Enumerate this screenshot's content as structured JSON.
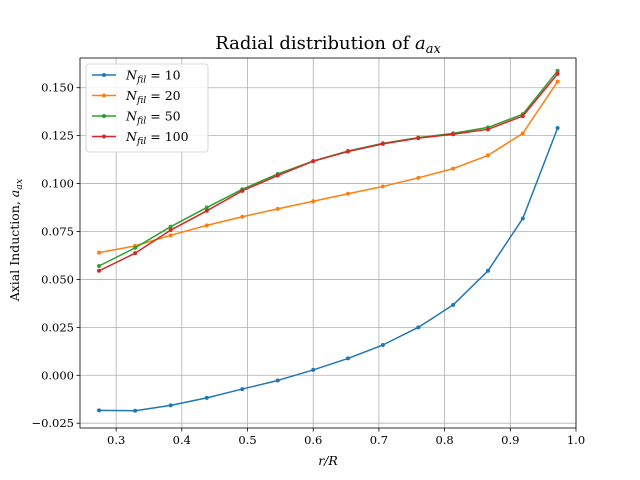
{
  "chart_data": {
    "type": "line",
    "title": "Radial distribution of a_ax",
    "title_parts": {
      "prefix": "Radial distribution of ",
      "var": "a",
      "sub": "ax"
    },
    "xlabel": "r/R",
    "ylabel": "Axial Induction, a_ax",
    "ylabel_parts": {
      "prefix": "Axial Induction, ",
      "var": "a",
      "sub": "ax"
    },
    "xlim": [
      0.245,
      1.0
    ],
    "ylim": [
      -0.0275,
      0.1655
    ],
    "xticks": [
      0.3,
      0.4,
      0.5,
      0.6,
      0.7,
      0.8,
      0.9,
      1.0
    ],
    "xtick_labels": [
      "0.3",
      "0.4",
      "0.5",
      "0.6",
      "0.7",
      "0.8",
      "0.9",
      "1.0"
    ],
    "yticks": [
      -0.025,
      0.0,
      0.025,
      0.05,
      0.075,
      0.1,
      0.125,
      0.15
    ],
    "ytick_labels": [
      "−0.025",
      "0.000",
      "0.025",
      "0.050",
      "0.075",
      "0.100",
      "0.125",
      "0.150"
    ],
    "grid": true,
    "legend_position": "top-left",
    "series": [
      {
        "name": "N_fil = 10",
        "legend_parts": {
          "var": "N",
          "sub": "fil",
          "rest": " = 10"
        },
        "color": "#1f77b4",
        "x": [
          0.274,
          0.329,
          0.383,
          0.438,
          0.492,
          0.546,
          0.6,
          0.653,
          0.706,
          0.76,
          0.813,
          0.866,
          0.919,
          0.972
        ],
        "y": [
          -0.0183,
          -0.0185,
          -0.0157,
          -0.0118,
          -0.0072,
          -0.0027,
          0.0028,
          0.0088,
          0.0158,
          0.025,
          0.0367,
          0.0545,
          0.0818,
          0.129
        ]
      },
      {
        "name": "N_fil = 20",
        "legend_parts": {
          "var": "N",
          "sub": "fil",
          "rest": " = 20"
        },
        "color": "#ff7f0e",
        "x": [
          0.274,
          0.329,
          0.383,
          0.438,
          0.492,
          0.546,
          0.6,
          0.653,
          0.706,
          0.76,
          0.813,
          0.866,
          0.919,
          0.972
        ],
        "y": [
          0.064,
          0.0675,
          0.073,
          0.0782,
          0.0827,
          0.0868,
          0.0908,
          0.0947,
          0.0985,
          0.103,
          0.1078,
          0.1147,
          0.1262,
          0.1532
        ]
      },
      {
        "name": "N_fil = 50",
        "legend_parts": {
          "var": "N",
          "sub": "fil",
          "rest": " = 50"
        },
        "color": "#2ca02c",
        "x": [
          0.274,
          0.329,
          0.383,
          0.438,
          0.492,
          0.546,
          0.6,
          0.653,
          0.706,
          0.76,
          0.813,
          0.866,
          0.919,
          0.972
        ],
        "y": [
          0.057,
          0.0665,
          0.0775,
          0.0875,
          0.097,
          0.105,
          0.1117,
          0.117,
          0.121,
          0.124,
          0.1262,
          0.1293,
          0.1362,
          0.1588
        ]
      },
      {
        "name": "N_fil = 100",
        "legend_parts": {
          "var": "N",
          "sub": "fil",
          "rest": " = 100"
        },
        "color": "#d62728",
        "x": [
          0.274,
          0.329,
          0.383,
          0.438,
          0.492,
          0.546,
          0.6,
          0.653,
          0.706,
          0.76,
          0.813,
          0.866,
          0.919,
          0.972
        ],
        "y": [
          0.0545,
          0.0637,
          0.0757,
          0.0858,
          0.0962,
          0.1042,
          0.1117,
          0.1167,
          0.1207,
          0.1237,
          0.1257,
          0.1283,
          0.1352,
          0.1572
        ]
      }
    ]
  }
}
